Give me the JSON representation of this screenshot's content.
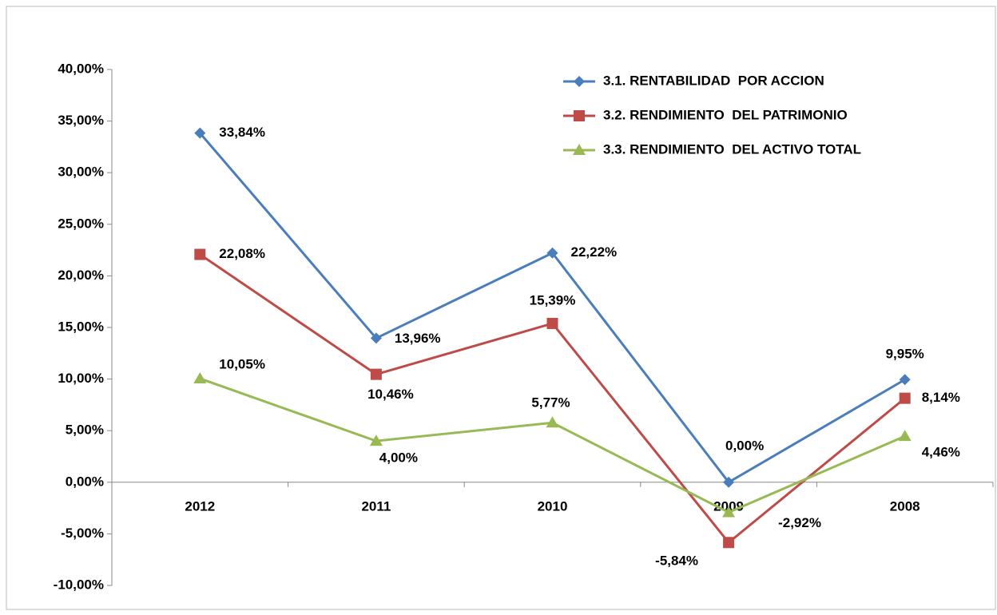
{
  "chart_data": {
    "type": "line",
    "categories": [
      "2012",
      "2011",
      "2010",
      "2009",
      "2008"
    ],
    "series": [
      {
        "name": "3.1. RENTABILIDAD  POR ACCION",
        "color": "#4a7ebb",
        "marker": "diamond",
        "values": [
          33.84,
          13.96,
          22.22,
          0,
          9.95
        ],
        "value_labels": [
          "33,84%",
          "13,96%",
          "22,22%",
          "0,00%",
          "9,95%"
        ]
      },
      {
        "name": "3.2. RENDIMIENTO  DEL PATRIMONIO",
        "color": "#be4b48",
        "marker": "square",
        "values": [
          22.08,
          10.46,
          15.39,
          -5.84,
          8.14
        ],
        "value_labels": [
          "22,08%",
          "10,46%",
          "15,39%",
          "-5,84%",
          "8,14%"
        ]
      },
      {
        "name": "3.3. RENDIMIENTO  DEL ACTIVO TOTAL",
        "color": "#98b954",
        "marker": "triangle",
        "values": [
          10.05,
          4.0,
          5.77,
          -2.92,
          4.46
        ],
        "value_labels": [
          "10,05%",
          "4,00%",
          "5,77%",
          "-2,92%",
          "4,46%"
        ]
      }
    ],
    "ylim": [
      -10,
      40
    ],
    "yticks": [
      {
        "value": -10,
        "label": "-10,00%"
      },
      {
        "value": -5,
        "label": "-5,00%"
      },
      {
        "value": 0,
        "label": "0,00%"
      },
      {
        "value": 5,
        "label": "5,00%"
      },
      {
        "value": 10,
        "label": "10,00%"
      },
      {
        "value": 15,
        "label": "15,00%"
      },
      {
        "value": 20,
        "label": "20,00%"
      },
      {
        "value": 25,
        "label": "25,00%"
      },
      {
        "value": 30,
        "label": "30,00%"
      },
      {
        "value": 35,
        "label": "35,00%"
      },
      {
        "value": 40,
        "label": "40,00%"
      }
    ],
    "legend": "top-right"
  }
}
